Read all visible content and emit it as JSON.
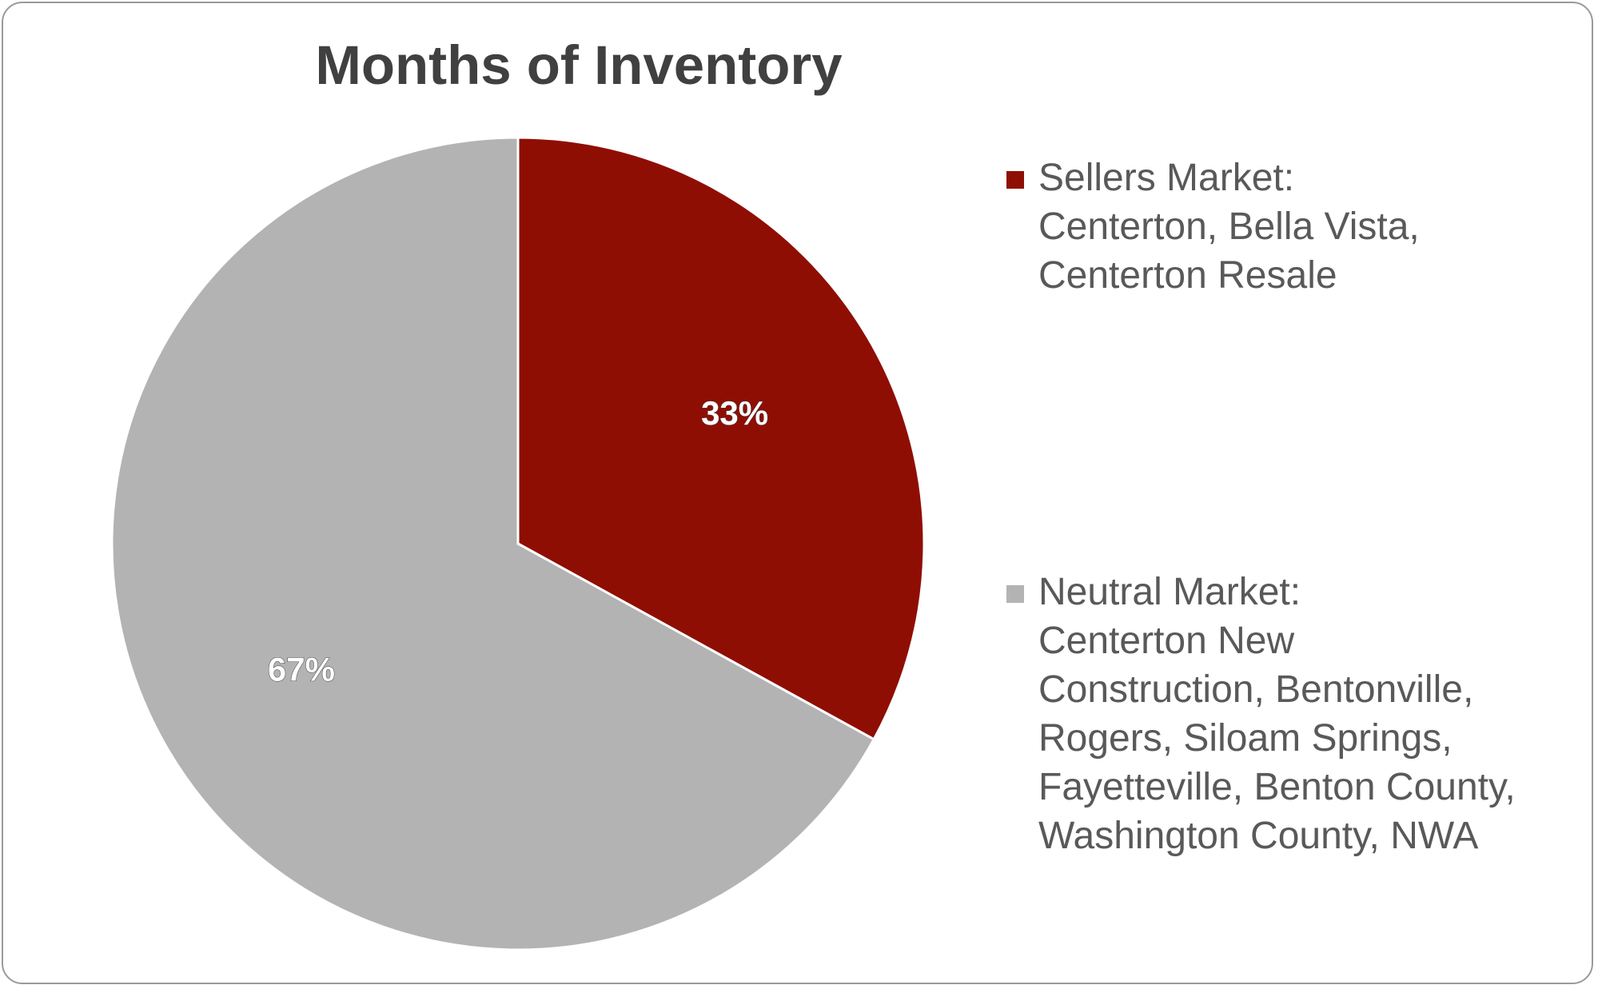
{
  "chart_data": {
    "type": "pie",
    "title": "Months of Inventory",
    "series": [
      {
        "values": [
          33,
          67
        ]
      }
    ],
    "categories": [
      "Sellers Market: Centerton, Bella Vista, Centerton Resale",
      "Neutral Market: Centerton New Construction, Bentonville, Rogers, Siloam Springs, Fayetteville, Benton County, Washington County, NWA"
    ],
    "slices": [
      {
        "label_lines": [
          "Sellers Market:",
          "Centerton, Bella Vista,",
          "Centerton Resale"
        ],
        "value": 33,
        "data_label": "33%",
        "color": "#8f0e04"
      },
      {
        "label_lines": [
          "Neutral Market:",
          "Centerton New",
          "Construction, Bentonville,",
          "Rogers, Siloam Springs,",
          "Fayetteville, Benton County,",
          "Washington County, NWA"
        ],
        "value": 67,
        "data_label": "67%",
        "color": "#b3b3b3"
      }
    ],
    "start_angle": "12 o'clock",
    "direction": "clockwise",
    "legend_position": "right"
  }
}
